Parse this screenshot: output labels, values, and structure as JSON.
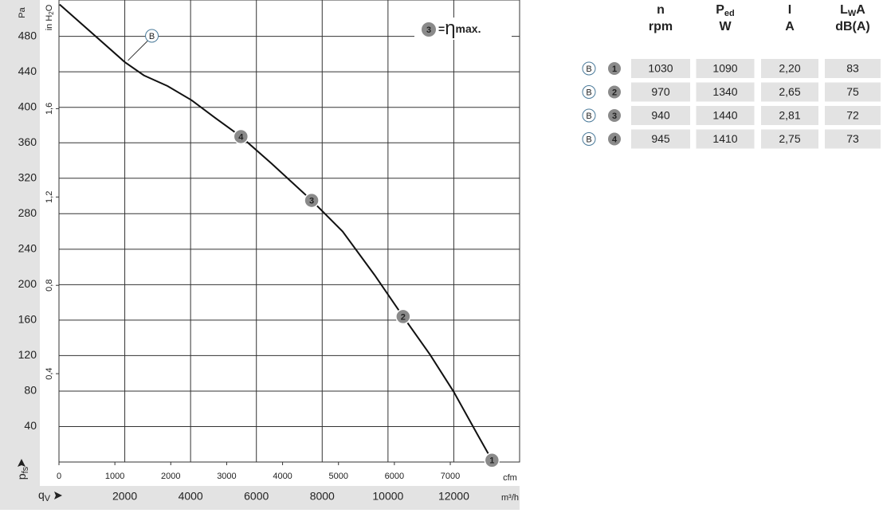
{
  "chart_data": {
    "type": "line",
    "ylabel": "Pa",
    "y2label": {
      "pre": "in H",
      "sub": "2",
      "post": "O"
    },
    "quantity_y": {
      "main": "p",
      "sub": "fs"
    },
    "quantity_x": {
      "main": "q",
      "sub": "V"
    },
    "xlabel": "m³/h",
    "x2label": "cfm",
    "xlim": [
      0,
      14000
    ],
    "xticks": [
      2000,
      4000,
      6000,
      8000,
      10000,
      12000
    ],
    "x2lim": [
      0,
      8240
    ],
    "x2ticks": [
      0,
      1000,
      2000,
      3000,
      4000,
      5000,
      6000,
      7000
    ],
    "ylim": [
      0,
      521
    ],
    "yticks": [
      40,
      80,
      120,
      160,
      200,
      240,
      280,
      320,
      360,
      400,
      440,
      480
    ],
    "y2lim": [
      0,
      2.092
    ],
    "y2ticks": [
      {
        "value": 0.4,
        "label": "0,4"
      },
      {
        "value": 0.8,
        "label": "0,8"
      },
      {
        "value": 1.2,
        "label": "1,2"
      },
      {
        "value": 1.6,
        "label": "1,6"
      }
    ],
    "grid": true,
    "series": [
      {
        "name": "B",
        "color": "#111111",
        "x": [
          20,
          2000,
          2580,
          3300,
          4030,
          4750,
          5530,
          6450,
          7680,
          8620,
          9590,
          10460,
          11280,
          12000,
          12720,
          13160
        ],
        "values": [
          516,
          451,
          436,
          424,
          408,
          388,
          367,
          337,
          295,
          260,
          211,
          164,
          121,
          79,
          31,
          2
        ]
      }
    ],
    "points": [
      {
        "label": "1",
        "x": 13160,
        "y": 2
      },
      {
        "label": "2",
        "x": 10460,
        "y": 164
      },
      {
        "label": "3",
        "x": 7680,
        "y": 295
      },
      {
        "label": "4",
        "x": 5530,
        "y": 367
      }
    ],
    "legend": {
      "marker": "3",
      "eq": "=",
      "eta": "η",
      "text": "max."
    }
  },
  "table": {
    "headers": [
      {
        "top": "n",
        "sub": "",
        "post": "",
        "bottom": "rpm"
      },
      {
        "top": "P",
        "sub": "ed",
        "post": "",
        "bottom": "W"
      },
      {
        "top": "I",
        "sub": "",
        "post": "",
        "bottom": "A"
      },
      {
        "top": "L",
        "sub": "W",
        "post": "A",
        "bottom": "dB(A)"
      }
    ],
    "rows": [
      {
        "curve": "B",
        "point": "1",
        "cells": [
          "1030",
          "1090",
          "2,20",
          "83"
        ]
      },
      {
        "curve": "B",
        "point": "2",
        "cells": [
          "970",
          "1340",
          "2,65",
          "75"
        ]
      },
      {
        "curve": "B",
        "point": "3",
        "cells": [
          "940",
          "1440",
          "2,81",
          "72"
        ]
      },
      {
        "curve": "B",
        "point": "4",
        "cells": [
          "945",
          "1410",
          "2,75",
          "73"
        ]
      }
    ]
  }
}
